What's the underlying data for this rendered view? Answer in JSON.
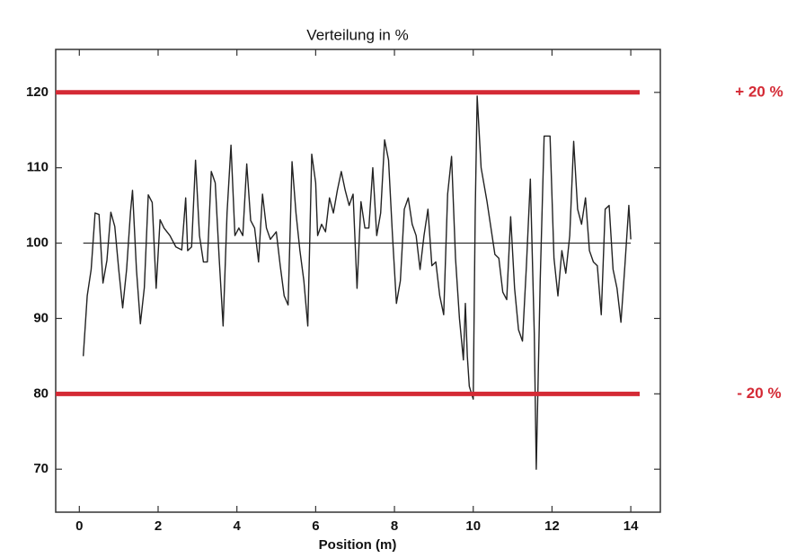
{
  "chart_data": {
    "type": "line",
    "title": "Verteilung in %",
    "x_label": "Position (m)",
    "color": "#222222",
    "x": [
      0.1,
      0.2,
      0.3,
      0.4,
      0.5,
      0.6,
      0.7,
      0.8,
      0.9,
      1.0,
      1.1,
      1.2,
      1.3,
      1.35,
      1.45,
      1.55,
      1.65,
      1.75,
      1.85,
      1.95,
      2.05,
      2.15,
      2.3,
      2.45,
      2.6,
      2.7,
      2.75,
      2.85,
      2.95,
      3.05,
      3.15,
      3.25,
      3.35,
      3.45,
      3.55,
      3.65,
      3.75,
      3.85,
      3.95,
      4.05,
      4.15,
      4.25,
      4.35,
      4.45,
      4.55,
      4.65,
      4.75,
      4.85,
      5.0,
      5.1,
      5.2,
      5.3,
      5.4,
      5.5,
      5.6,
      5.7,
      5.8,
      5.9,
      6.0,
      6.05,
      6.15,
      6.25,
      6.35,
      6.45,
      6.55,
      6.65,
      6.75,
      6.85,
      6.95,
      7.05,
      7.15,
      7.25,
      7.35,
      7.45,
      7.55,
      7.65,
      7.75,
      7.85,
      7.95,
      8.05,
      8.15,
      8.25,
      8.35,
      8.45,
      8.55,
      8.65,
      8.75,
      8.85,
      8.95,
      9.05,
      9.15,
      9.25,
      9.35,
      9.45,
      9.55,
      9.65,
      9.75,
      9.8,
      9.85,
      9.9,
      10.0,
      10.05,
      10.1,
      10.2,
      10.35,
      10.45,
      10.55,
      10.65,
      10.75,
      10.85,
      10.95,
      11.05,
      11.15,
      11.25,
      11.35,
      11.45,
      11.55,
      11.6,
      11.7,
      11.8,
      11.95,
      12.05,
      12.15,
      12.25,
      12.35,
      12.45,
      12.55,
      12.65,
      12.75,
      12.85,
      12.95,
      13.05,
      13.15,
      13.25,
      13.35,
      13.45,
      13.55,
      13.65,
      13.75,
      13.85,
      13.95,
      14.0
    ],
    "values": [
      85,
      93,
      96.5,
      104,
      103.8,
      94.7,
      97.7,
      104.1,
      102.2,
      96.5,
      91.4,
      96.5,
      104.2,
      107,
      96.5,
      89.3,
      94.1,
      106.4,
      105.4,
      94,
      103.1,
      102,
      101,
      99.5,
      99.1,
      106,
      99,
      99.5,
      111,
      101,
      97.5,
      97.5,
      109.5,
      108,
      98,
      89,
      104,
      113,
      101,
      102,
      101,
      110.5,
      103,
      102,
      97.5,
      106.5,
      102,
      100.5,
      101.5,
      97,
      93,
      91.8,
      110.8,
      104,
      99,
      95,
      89,
      111.8,
      108,
      101,
      102.5,
      101.5,
      106,
      104,
      107,
      109.5,
      107,
      105,
      106.5,
      94,
      105.5,
      102,
      102,
      110,
      101,
      104,
      113.7,
      111,
      101,
      92,
      95,
      104.5,
      106,
      102.5,
      101,
      96.5,
      101,
      104.5,
      97,
      97.5,
      93,
      90.5,
      106.5,
      111.5,
      98,
      90,
      84.5,
      92,
      85,
      81,
      79.3,
      104,
      119.5,
      110,
      105.5,
      102,
      98.5,
      98,
      93.5,
      92.5,
      103.5,
      94,
      88.5,
      87,
      97,
      108.5,
      88,
      70,
      95,
      114.2,
      114.2,
      98,
      93,
      99,
      96,
      101,
      113.5,
      104.5,
      102.5,
      106,
      99,
      97.5,
      97,
      90.5,
      104.5,
      105,
      96.5,
      94,
      89.5,
      97,
      105,
      100.5
    ],
    "baseline": 100,
    "reference_lines": [
      {
        "value": 120,
        "label": "+ 20 %",
        "color": "#d42a35"
      },
      {
        "value": 80,
        "label": "- 20 %",
        "color": "#d42a35"
      }
    ],
    "xlim": [
      -0.6,
      14.75
    ],
    "ylim": [
      64.3,
      125.7
    ],
    "xticks": [
      0,
      2,
      4,
      6,
      8,
      10,
      12,
      14
    ],
    "yticks": [
      70,
      80,
      90,
      100,
      110,
      120
    ]
  }
}
